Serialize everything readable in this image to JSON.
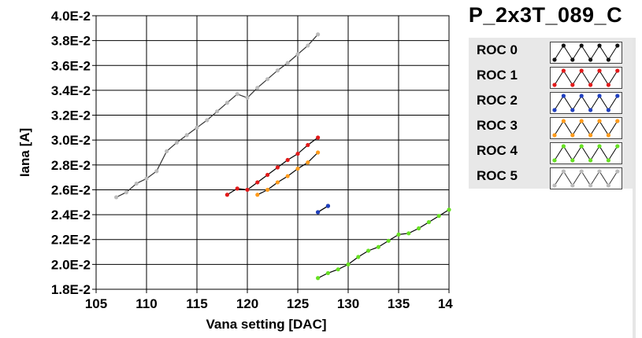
{
  "chart_data": {
    "type": "line",
    "title": "P_2x3T_089_C",
    "xlabel": "Vana setting [DAC]",
    "ylabel": "Iana [A]",
    "xlim": [
      105,
      140
    ],
    "ylim": [
      0.018,
      0.04
    ],
    "x_ticks": [
      105,
      110,
      115,
      120,
      125,
      130,
      135,
      140
    ],
    "y_ticks": [
      0.018,
      0.02,
      0.022,
      0.024,
      0.026,
      0.028,
      0.03,
      0.032,
      0.034,
      0.036,
      0.038,
      0.04
    ],
    "y_tick_labels": [
      "1.8E-2",
      "2.0E-2",
      "2.2E-2",
      "2.4E-2",
      "2.6E-2",
      "2.8E-2",
      "3.0E-2",
      "3.2E-2",
      "3.4E-2",
      "3.6E-2",
      "3.8E-2",
      "4.0E-2"
    ],
    "grid": true,
    "legend_position": "right",
    "series": [
      {
        "name": "ROC 0",
        "color": "#111111",
        "x": [
          127,
          128
        ],
        "y": [
          0.0242,
          0.0247
        ]
      },
      {
        "name": "ROC 1",
        "color": "#e21a1a",
        "x": [
          118,
          119,
          120,
          121,
          122,
          123,
          124,
          125,
          126,
          127
        ],
        "y": [
          0.0256,
          0.0261,
          0.026,
          0.0266,
          0.0272,
          0.0278,
          0.0284,
          0.0289,
          0.0296,
          0.0302
        ]
      },
      {
        "name": "ROC 2",
        "color": "#1f3fbf",
        "x": [
          127,
          128
        ],
        "y": [
          0.0242,
          0.0247
        ]
      },
      {
        "name": "ROC 3",
        "color": "#ff9a1a",
        "x": [
          121,
          122,
          123,
          124,
          125,
          126,
          127
        ],
        "y": [
          0.0256,
          0.026,
          0.0266,
          0.0271,
          0.0277,
          0.0282,
          0.029
        ]
      },
      {
        "name": "ROC 4",
        "color": "#66e022",
        "x": [
          127,
          128,
          129,
          130,
          131,
          132,
          133,
          134,
          135,
          136,
          137,
          138,
          139,
          140
        ],
        "y": [
          0.0189,
          0.0193,
          0.0196,
          0.02,
          0.0206,
          0.0211,
          0.0214,
          0.0219,
          0.0224,
          0.0225,
          0.0229,
          0.0234,
          0.0239,
          0.0244
        ]
      },
      {
        "name": "ROC 5",
        "color": "#bbbbbb",
        "line_color": "#333333",
        "x": [
          107,
          108,
          109,
          110,
          111,
          112,
          113,
          114,
          115,
          116,
          117,
          118,
          119,
          120,
          121,
          122,
          123,
          124,
          125,
          126,
          127
        ],
        "y": [
          0.0254,
          0.0258,
          0.0265,
          0.0269,
          0.0275,
          0.0291,
          0.0298,
          0.0304,
          0.031,
          0.0316,
          0.0323,
          0.033,
          0.0337,
          0.0334,
          0.0342,
          0.0349,
          0.0356,
          0.0362,
          0.0369,
          0.0376,
          0.0385
        ]
      }
    ]
  }
}
